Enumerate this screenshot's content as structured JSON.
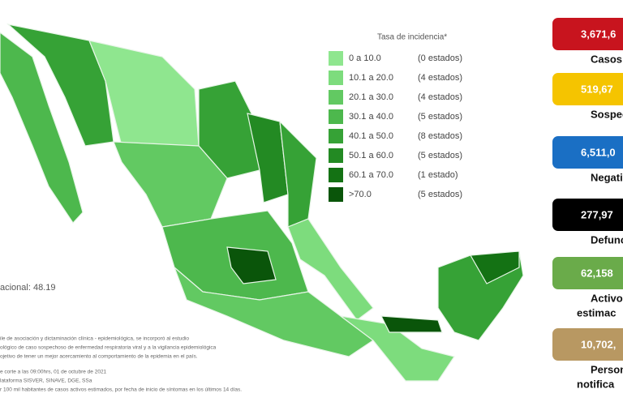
{
  "legend": {
    "title": "Tasa de incidencia*",
    "items": [
      {
        "range": "0  a  10.0",
        "count": "(0 estados)",
        "color": "#8fe68f"
      },
      {
        "range": "10.1 a 20.0",
        "count": "(4 estados)",
        "color": "#7ddc7d"
      },
      {
        "range": "20.1 a 30.0",
        "count": "(4 estados)",
        "color": "#62c962"
      },
      {
        "range": "30.1 a 40.0",
        "count": "(5 estados)",
        "color": "#4db84d"
      },
      {
        "range": "40.1 a 50.0",
        "count": "(8 estados)",
        "color": "#36a236"
      },
      {
        "range": "50.1 a 60.0",
        "count": "(5 estados)",
        "color": "#238a23"
      },
      {
        "range": "60.1 a 70.0",
        "count": "(1 estado)",
        "color": "#147214"
      },
      {
        "range": ">70.0",
        "count": "(5 estados)",
        "color": "#0a550a"
      }
    ]
  },
  "national_rate": "acional: 48.19",
  "footnotes": [
    "ile de asociación y dictaminación clínica - epidemiológica, se incorporó al estudio",
    "ológico de caso sospechoso de enfermedad respiratoria viral y a la vigilancia epidemiológica",
    "ojetivo de tener un mejor acercamiento al comportamiento de la epidemia en el país.",
    "e corte a las 09:00hrs, 01 de octubre de 2021",
    "lataforma SISVER, SINAVE, DGE, SSa",
    "r 100 mil habitantes de casos activos estimados, por fecha de inicio de síntomas en los últimos 14 días."
  ],
  "stats": [
    {
      "value": "3,671,6",
      "label": [
        "Casos"
      ],
      "color": "#c8141e",
      "text": "#ffffff"
    },
    {
      "value": "519,67",
      "label": [
        "Sospech"
      ],
      "color": "#f5c400",
      "text": "#ffffff"
    },
    {
      "value": "6,511,0",
      "label": [
        "Negativ"
      ],
      "color": "#1a6fc4",
      "text": "#ffffff"
    },
    {
      "value": "277,97",
      "label": [
        "Defuncio"
      ],
      "color": "#000000",
      "text": "#ffffff"
    },
    {
      "value": "62,158",
      "label": [
        "Activo",
        "estimac"
      ],
      "color": "#6aab4a",
      "text": "#ffffff"
    },
    {
      "value": "10,702,",
      "label": [
        "Person",
        "notifica"
      ],
      "color": "#b89862",
      "text": "#ffffff"
    }
  ]
}
